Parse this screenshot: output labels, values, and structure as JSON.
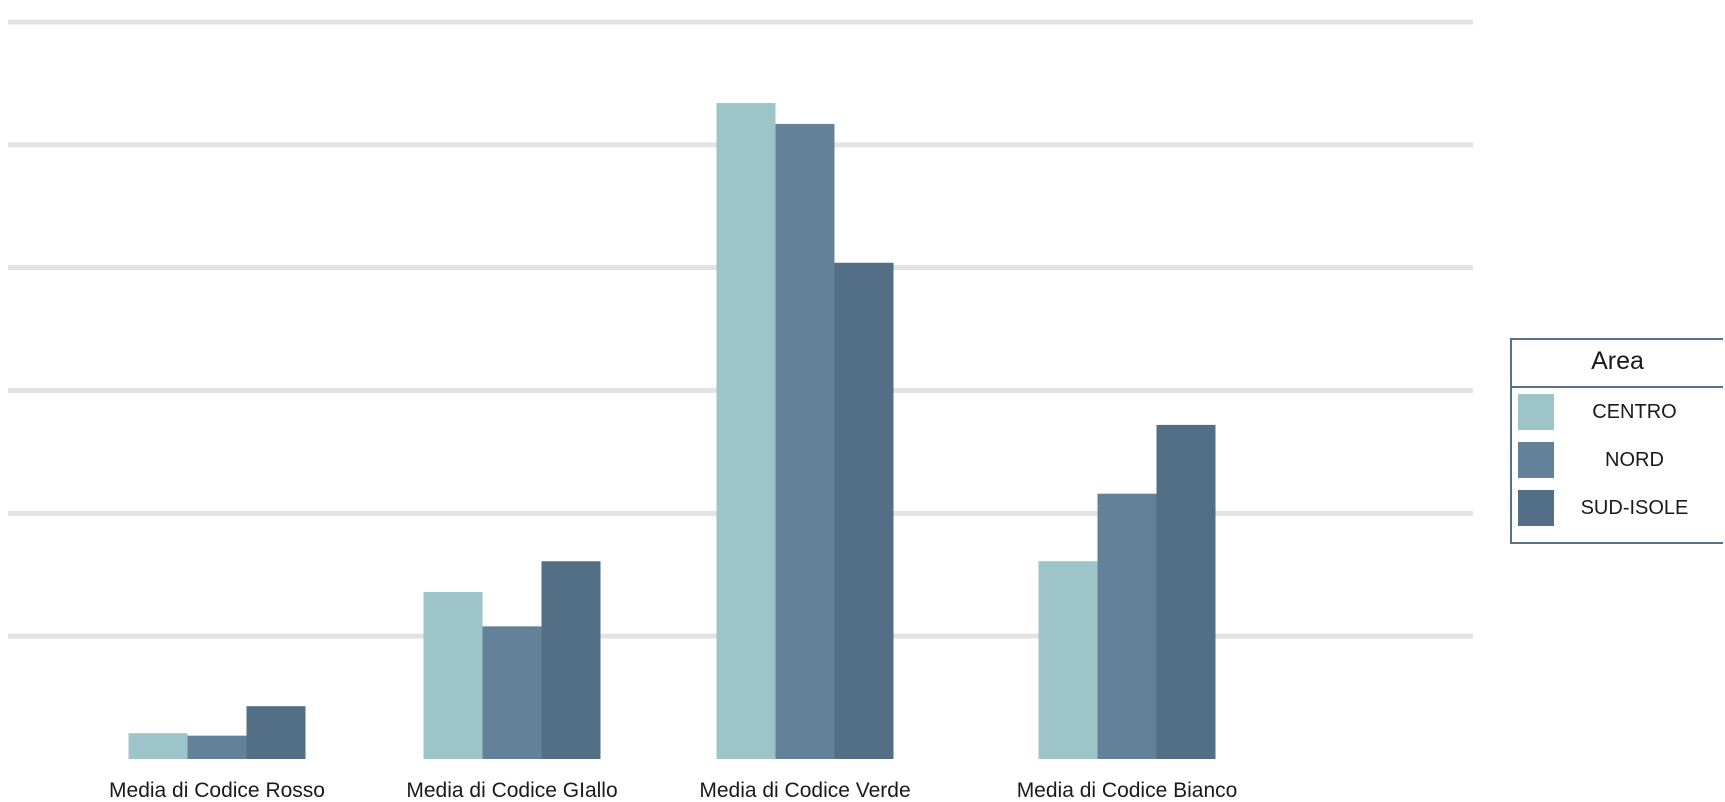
{
  "chart_data": {
    "type": "bar",
    "categories": [
      "Media di Codice Rosso",
      "Media di Codice GIallo",
      "Media di Codice Verde",
      "Media di Codice Bianco"
    ],
    "series": [
      {
        "name": "CENTRO",
        "color": "#9cc4c9",
        "values": [
          0.21,
          1.36,
          5.34,
          1.61
        ]
      },
      {
        "name": "NORD",
        "color": "#63829a",
        "values": [
          0.19,
          1.08,
          5.17,
          2.16
        ]
      },
      {
        "name": "SUD-ISOLE",
        "color": "#536f85",
        "values": [
          0.43,
          1.61,
          4.04,
          2.72
        ]
      }
    ],
    "ylim": [
      0,
      6
    ],
    "grid": true,
    "legend": {
      "title": "Area",
      "position": "right"
    },
    "title": "",
    "xlabel": "",
    "ylabel": ""
  }
}
